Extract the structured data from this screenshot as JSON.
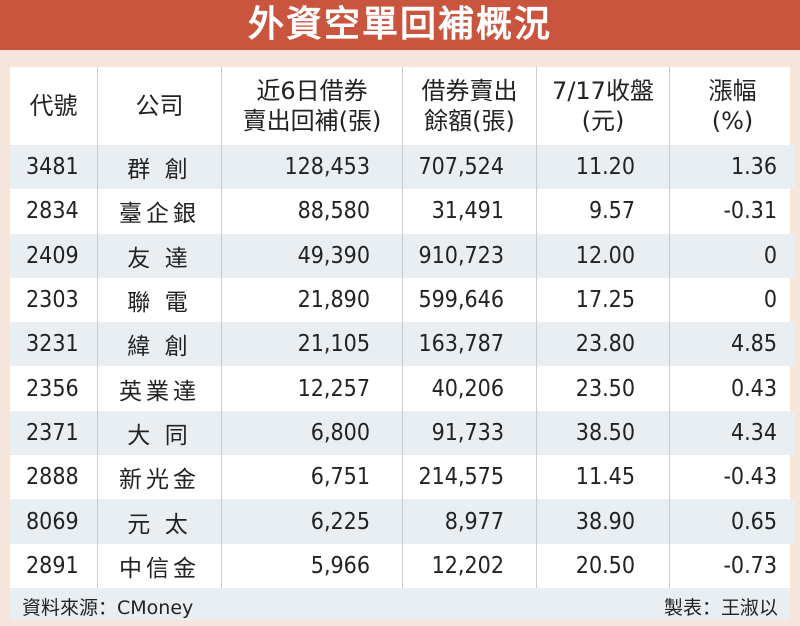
{
  "title": "外資空單回補概況",
  "colors": {
    "title_bar": "#c9553f",
    "background": "#f6e5da",
    "stripe": "#e9eef2"
  },
  "table": {
    "headers": [
      {
        "line1": "代號",
        "line2": ""
      },
      {
        "line1": "公司",
        "line2": ""
      },
      {
        "line1": "近6日借券",
        "line2": "賣出回補(張)"
      },
      {
        "line1": "借券賣出",
        "line2": "餘額(張)"
      },
      {
        "line1": "7/17收盤",
        "line2": "(元)"
      },
      {
        "line1": "漲幅",
        "line2": "(%)"
      }
    ],
    "rows": [
      [
        "3481",
        "群 創",
        "128,453",
        "707,524",
        "11.20",
        "1.36"
      ],
      [
        "2834",
        "臺企銀",
        "88,580",
        "31,491",
        "9.57",
        "-0.31"
      ],
      [
        "2409",
        "友 達",
        "49,390",
        "910,723",
        "12.00",
        "0"
      ],
      [
        "2303",
        "聯 電",
        "21,890",
        "599,646",
        "17.25",
        "0"
      ],
      [
        "3231",
        "緯 創",
        "21,105",
        "163,787",
        "23.80",
        "4.85"
      ],
      [
        "2356",
        "英業達",
        "12,257",
        "40,206",
        "23.50",
        "0.43"
      ],
      [
        "2371",
        "大 同",
        "6,800",
        "91,733",
        "38.50",
        "4.34"
      ],
      [
        "2888",
        "新光金",
        "6,751",
        "214,575",
        "11.45",
        "-0.43"
      ],
      [
        "8069",
        "元 太",
        "6,225",
        "8,977",
        "38.90",
        "0.65"
      ],
      [
        "2891",
        "中信金",
        "5,966",
        "12,202",
        "20.50",
        "-0.73"
      ]
    ]
  },
  "footer": {
    "source": "資料來源：CMoney",
    "author": "製表：王淑以"
  }
}
